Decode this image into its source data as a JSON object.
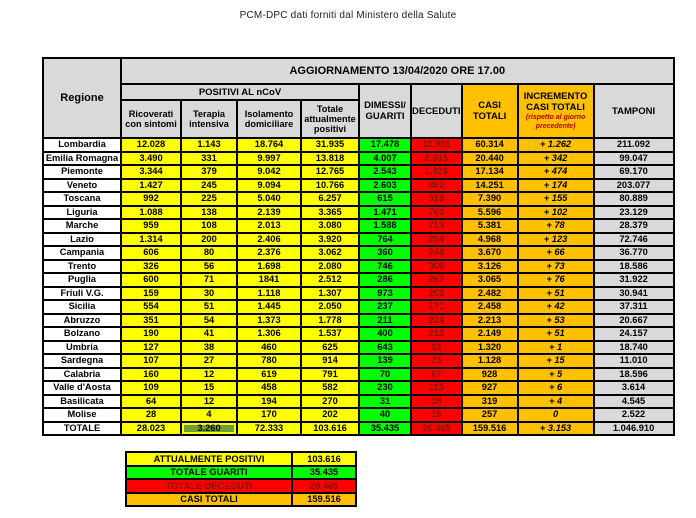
{
  "page_title": "PCM-DPC dati forniti dal Ministero della Salute",
  "colors": {
    "yellow": "#FFFF00",
    "green": "#00FF00",
    "red": "#FF0000",
    "orange": "#FFC000",
    "gray": "#D9D9D9",
    "dark_red_text": "#7F1400",
    "note_red": "#C00000",
    "totals_highlight": "#6E9E35"
  },
  "table": {
    "region_header": "Regione",
    "update_banner": "AGGIORNAMENTO 13/04/2020 ORE 17.00",
    "group_header": "POSITIVI AL nCoV",
    "sub_headers": [
      "Ricoverati con sintomi",
      "Terapia intensiva",
      "Isolamento domiciliare",
      "Totale attualmente positivi"
    ],
    "dimessi_header": "DIMESSI/ GUARITI",
    "deceduti_header": "DECEDUTI",
    "casi_totali_header": "CASI TOTALI",
    "incremento_header": "INCREMENTO CASI TOTALI",
    "incremento_note": "(rispetto al giorno precedente)",
    "tamponi_header": "TAMPONI",
    "columns": [
      {
        "key": "ricoverati-con-sintomi",
        "color": "yellow"
      },
      {
        "key": "terapia-intensiva",
        "color": "yellow"
      },
      {
        "key": "isolamento-domiciliare",
        "color": "yellow"
      },
      {
        "key": "totale-attualmente-positivi",
        "color": "yellow"
      },
      {
        "key": "dimessi-guariti",
        "color": "green"
      },
      {
        "key": "deceduti",
        "color": "red",
        "dark_text": true
      },
      {
        "key": "casi-totali",
        "color": "orange"
      },
      {
        "key": "incremento-casi-totali",
        "color": "orange",
        "italic": true
      },
      {
        "key": "tamponi",
        "color": "gray"
      }
    ],
    "rows": [
      {
        "region": "Lombardia",
        "values": [
          "12.028",
          "1.143",
          "18.764",
          "31.935",
          "17.478",
          "10.901",
          "60.314",
          "+ 1.262",
          "211.092"
        ]
      },
      {
        "region": "Emilia Romagna",
        "values": [
          "3.490",
          "331",
          "9.997",
          "13.818",
          "4.007",
          "2.615",
          "20.440",
          "+ 342",
          "99.047"
        ]
      },
      {
        "region": "Piemonte",
        "values": [
          "3.344",
          "379",
          "9.042",
          "12.765",
          "2.543",
          "1.826",
          "17.134",
          "+ 474",
          "69.170"
        ]
      },
      {
        "region": "Veneto",
        "values": [
          "1.427",
          "245",
          "9.094",
          "10.766",
          "2.603",
          "882",
          "14.251",
          "+ 174",
          "203.077"
        ]
      },
      {
        "region": "Toscana",
        "values": [
          "992",
          "225",
          "5.040",
          "6.257",
          "615",
          "518",
          "7.390",
          "+ 155",
          "80.889"
        ]
      },
      {
        "region": "Liguria",
        "values": [
          "1.088",
          "138",
          "2.139",
          "3.365",
          "1.471",
          "760",
          "5.596",
          "+ 102",
          "23.129"
        ]
      },
      {
        "region": "Marche",
        "values": [
          "959",
          "108",
          "2.013",
          "3.080",
          "1.588",
          "713",
          "5.381",
          "+ 78",
          "28.379"
        ]
      },
      {
        "region": "Lazio",
        "values": [
          "1.314",
          "200",
          "2.406",
          "3.920",
          "764",
          "284",
          "4.968",
          "+ 123",
          "72.746"
        ]
      },
      {
        "region": "Campania",
        "values": [
          "606",
          "80",
          "2.376",
          "3.062",
          "360",
          "248",
          "3.670",
          "+ 66",
          "36.770"
        ]
      },
      {
        "region": "Trento",
        "values": [
          "326",
          "56",
          "1.698",
          "2.080",
          "746",
          "300",
          "3.126",
          "+ 73",
          "18.586"
        ]
      },
      {
        "region": "Puglia",
        "values": [
          "600",
          "71",
          "1841",
          "2.512",
          "286",
          "267",
          "3.065",
          "+ 76",
          "31.922"
        ]
      },
      {
        "region": "Friuli V.G.",
        "values": [
          "159",
          "30",
          "1.118",
          "1.307",
          "973",
          "202",
          "2.482",
          "+ 51",
          "30.941"
        ]
      },
      {
        "region": "Sicilia",
        "values": [
          "554",
          "51",
          "1.445",
          "2.050",
          "237",
          "171",
          "2.458",
          "+ 42",
          "37.311"
        ]
      },
      {
        "region": "Abruzzo",
        "values": [
          "351",
          "54",
          "1.373",
          "1.778",
          "211",
          "224",
          "2.213",
          "+ 53",
          "20.667"
        ]
      },
      {
        "region": "Bolzano",
        "values": [
          "190",
          "41",
          "1.306",
          "1.537",
          "400",
          "212",
          "2.149",
          "+ 51",
          "24.157"
        ]
      },
      {
        "region": "Umbria",
        "values": [
          "127",
          "38",
          "460",
          "625",
          "643",
          "52",
          "1.320",
          "+ 1",
          "18.740"
        ]
      },
      {
        "region": "Sardegna",
        "values": [
          "107",
          "27",
          "780",
          "914",
          "139",
          "75",
          "1.128",
          "+ 15",
          "11.010"
        ]
      },
      {
        "region": "Calabria",
        "values": [
          "160",
          "12",
          "619",
          "791",
          "70",
          "67",
          "928",
          "+ 5",
          "18.596"
        ]
      },
      {
        "region": "Valle d'Aosta",
        "values": [
          "109",
          "15",
          "458",
          "582",
          "230",
          "115",
          "927",
          "+ 6",
          "3.614"
        ]
      },
      {
        "region": "Basilicata",
        "values": [
          "64",
          "12",
          "194",
          "270",
          "31",
          "18",
          "319",
          "+ 4",
          "4.545"
        ]
      },
      {
        "region": "Molise",
        "values": [
          "28",
          "4",
          "170",
          "202",
          "40",
          "15",
          "257",
          "0",
          "2.522"
        ]
      }
    ],
    "totals": {
      "region": "TOTALE",
      "values": [
        "28.023",
        "3.260",
        "72.333",
        "103.616",
        "35.435",
        "20.465",
        "159.516",
        "+ 3.153",
        "1.046.910"
      ],
      "highlight_col": 1
    }
  },
  "legend": {
    "items": [
      {
        "key": "attualmente-positivi",
        "label": "ATTUALMENTE POSITIVI",
        "value": "103.616",
        "color": "yellow"
      },
      {
        "key": "totale-guariti",
        "label": "TOTALE GUARITI",
        "value": "35.435",
        "color": "green"
      },
      {
        "key": "totale-deceduti",
        "label": "TOTALE DECEDUTI",
        "value": "20.465",
        "color": "red",
        "dark_text": true
      },
      {
        "key": "casi-totali",
        "label": "CASI TOTALI",
        "value": "159.516",
        "color": "orange"
      }
    ]
  }
}
